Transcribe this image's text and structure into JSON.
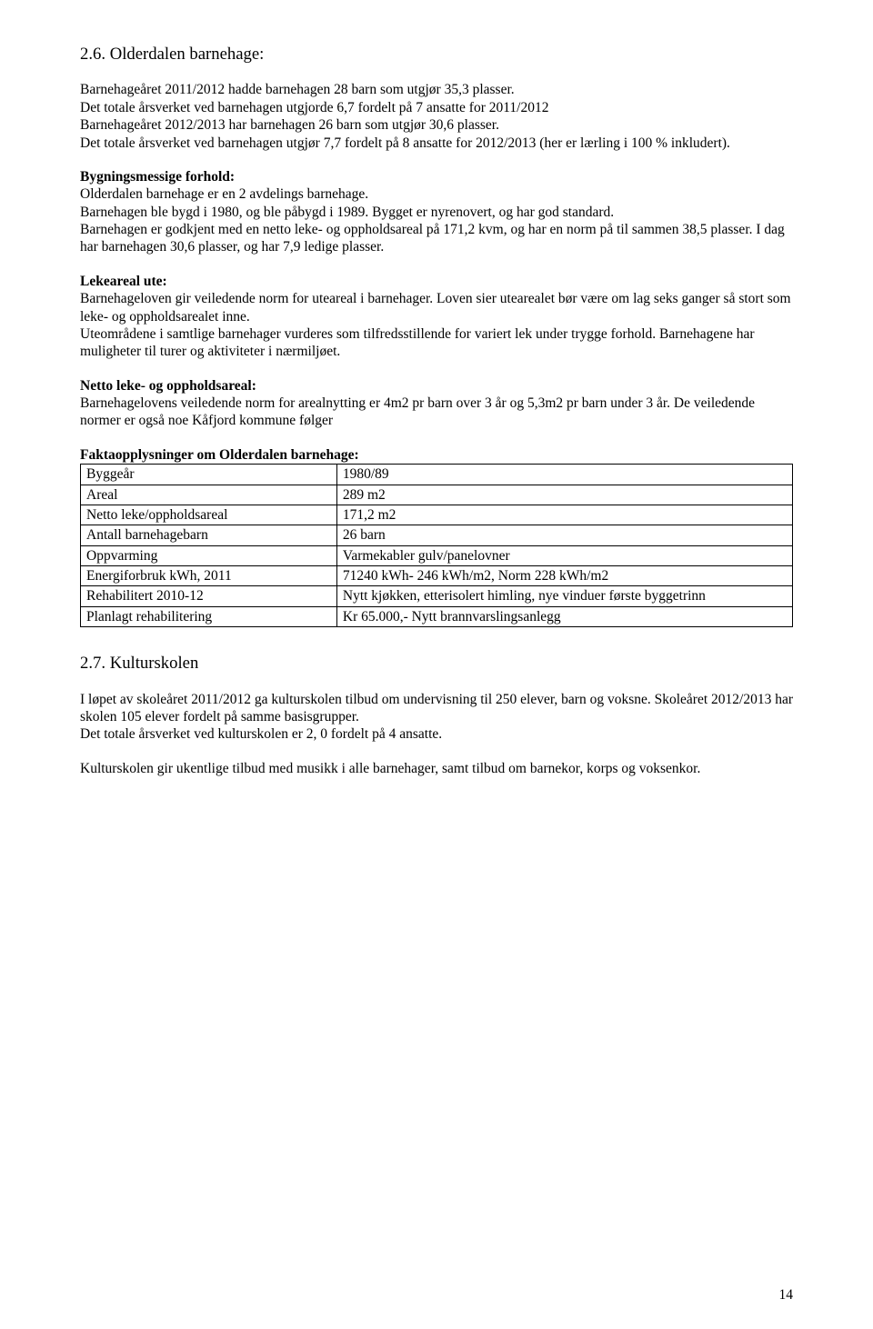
{
  "section_2_6": {
    "heading": "2.6. Olderdalen barnehage:",
    "para1": "Barnehageåret 2011/2012 hadde barnehagen 28 barn som utgjør 35,3 plasser.",
    "para2": "Det totale årsverket ved barnehagen utgjorde 6,7 fordelt på 7 ansatte for 2011/2012",
    "para3": "Barnehageåret 2012/2013 har barnehagen 26 barn som utgjør 30,6 plasser.",
    "para4": "Det totale årsverket ved barnehagen utgjør 7,7 fordelt på 8 ansatte for 2012/2013 (her er lærling i 100 % inkludert).",
    "bygn_heading": "Bygningsmessige forhold:",
    "bygn_p1": "Olderdalen barnehage er en 2 avdelings barnehage.",
    "bygn_p2": "Barnehagen ble bygd i 1980, og ble påbygd i 1989. Bygget er nyrenovert, og har god standard.",
    "bygn_p3": "Barnehagen er godkjent med en netto leke- og oppholdsareal på 171,2 kvm, og har en norm på til sammen 38,5 plasser. I dag har barnehagen 30,6 plasser, og har 7,9 ledige plasser.",
    "leke_heading": "Lekeareal ute:",
    "leke_p1": "Barnehageloven gir veiledende norm for uteareal i barnehager. Loven sier utearealet bør være om lag seks ganger så stort som leke- og oppholdsarealet inne.",
    "leke_p2": "Uteområdene i samtlige barnehager vurderes som tilfredsstillende for variert lek under trygge forhold. Barnehagene har muligheter til turer og aktiviteter i nærmiljøet.",
    "netto_heading": "Netto leke- og oppholdsareal:",
    "netto_p1": "Barnehagelovens veiledende norm for arealnytting er 4m2 pr barn over 3 år og 5,3m2 pr barn under 3 år.  De veiledende normer er også noe Kåfjord kommune følger",
    "facts_heading": "Faktaopplysninger om Olderdalen barnehage:",
    "facts_rows": [
      {
        "label": "Byggeår",
        "value": "1980/89"
      },
      {
        "label": "Areal",
        "value": "289 m2"
      },
      {
        "label": "Netto leke/oppholdsareal",
        "value": "171,2 m2"
      },
      {
        "label": "Antall barnehagebarn",
        "value": "26 barn"
      },
      {
        "label": "Oppvarming",
        "value": "Varmekabler gulv/panelovner"
      },
      {
        "label": "Energiforbruk kWh, 2011",
        "value": "71240 kWh- 246 kWh/m2, Norm 228 kWh/m2"
      },
      {
        "label": "Rehabilitert 2010-12",
        "value": "Nytt kjøkken, etterisolert himling, nye vinduer første byggetrinn"
      },
      {
        "label": "Planlagt rehabilitering",
        "value": "Kr 65.000,- Nytt brannvarslingsanlegg"
      }
    ]
  },
  "section_2_7": {
    "heading": "2.7. Kulturskolen",
    "p1": "I løpet av skoleåret 2011/2012 ga kulturskolen tilbud om undervisning til 250 elever, barn og voksne. Skoleåret 2012/2013 har skolen 105 elever fordelt på samme basisgrupper.",
    "p2": "Det totale årsverket ved kulturskolen er 2, 0 fordelt på 4 ansatte.",
    "p3": "Kulturskolen gir ukentlige tilbud med musikk i alle barnehager, samt tilbud om barnekor, korps og voksenkor."
  },
  "page_number": "14"
}
